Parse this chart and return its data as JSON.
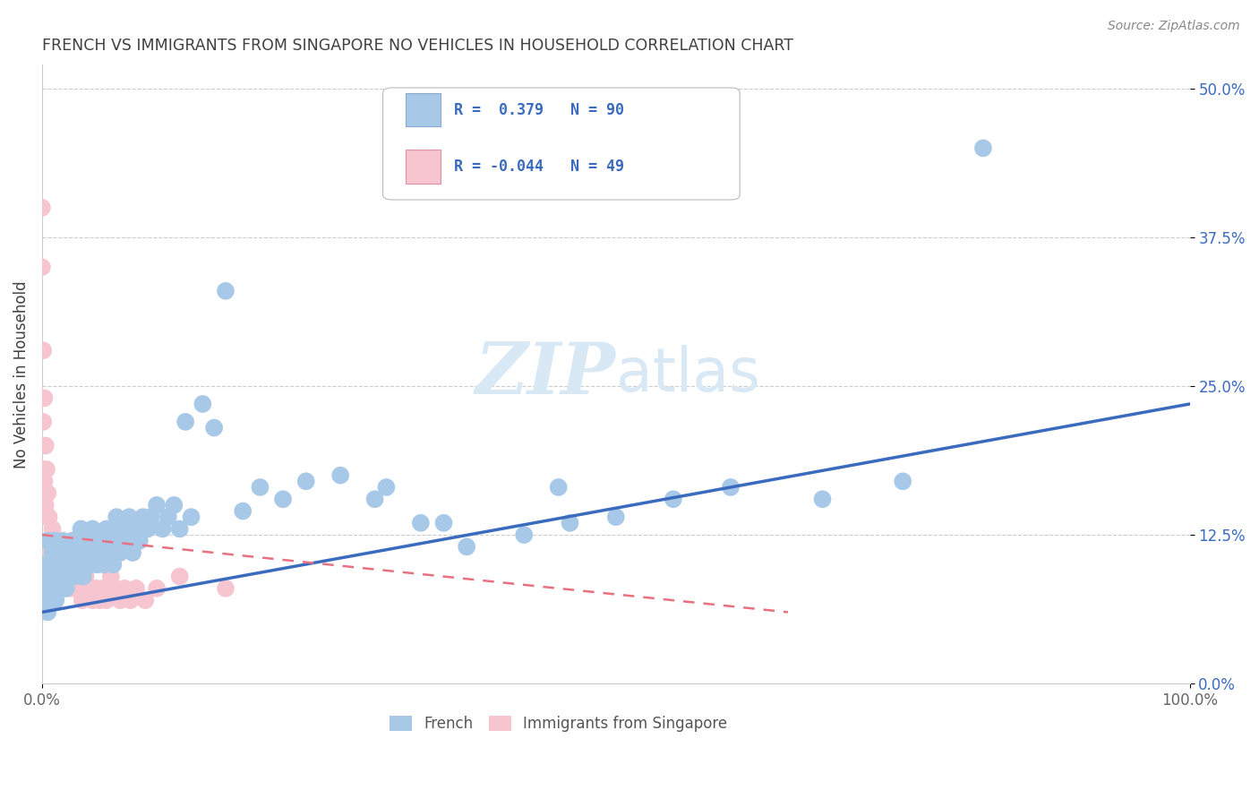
{
  "title": "FRENCH VS IMMIGRANTS FROM SINGAPORE NO VEHICLES IN HOUSEHOLD CORRELATION CHART",
  "source_text": "Source: ZipAtlas.com",
  "ylabel": "No Vehicles in Household",
  "xlim": [
    0.0,
    1.0
  ],
  "ylim": [
    0.0,
    0.52
  ],
  "yticks": [
    0.0,
    0.125,
    0.25,
    0.375,
    0.5
  ],
  "ytick_labels": [
    "0.0%",
    "12.5%",
    "25.0%",
    "37.5%",
    "50.0%"
  ],
  "xticks": [
    0.0,
    1.0
  ],
  "xtick_labels": [
    "0.0%",
    "100.0%"
  ],
  "french_R": 0.379,
  "french_N": 90,
  "singapore_R": -0.044,
  "singapore_N": 49,
  "french_color": "#a8c8e8",
  "singapore_color": "#f7c5cf",
  "french_line_color": "#3a6bbf",
  "singapore_line_color": "#e87080",
  "legend_text_color": "#3a6bbf",
  "title_color": "#404040",
  "watermark_color": "#d8e8f5",
  "grid_color": "#cccccc",
  "background_color": "#ffffff",
  "marker_size": 200,
  "french_x": [
    0.002,
    0.003,
    0.003,
    0.004,
    0.005,
    0.005,
    0.005,
    0.006,
    0.006,
    0.007,
    0.007,
    0.008,
    0.009,
    0.009,
    0.01,
    0.01,
    0.011,
    0.012,
    0.013,
    0.013,
    0.014,
    0.015,
    0.016,
    0.017,
    0.018,
    0.019,
    0.02,
    0.021,
    0.022,
    0.023,
    0.025,
    0.026,
    0.028,
    0.03,
    0.032,
    0.034,
    0.036,
    0.038,
    0.04,
    0.042,
    0.044,
    0.046,
    0.048,
    0.05,
    0.052,
    0.054,
    0.056,
    0.058,
    0.06,
    0.062,
    0.065,
    0.068,
    0.07,
    0.073,
    0.076,
    0.079,
    0.082,
    0.085,
    0.088,
    0.092,
    0.095,
    0.1,
    0.105,
    0.11,
    0.115,
    0.12,
    0.125,
    0.13,
    0.14,
    0.15,
    0.16,
    0.175,
    0.19,
    0.21,
    0.23,
    0.26,
    0.29,
    0.33,
    0.37,
    0.42,
    0.46,
    0.5,
    0.55,
    0.6,
    0.68,
    0.75,
    0.3,
    0.35,
    0.82,
    0.45
  ],
  "french_y": [
    0.09,
    0.07,
    0.1,
    0.08,
    0.06,
    0.12,
    0.08,
    0.09,
    0.07,
    0.1,
    0.08,
    0.09,
    0.11,
    0.07,
    0.08,
    0.1,
    0.12,
    0.07,
    0.09,
    0.11,
    0.08,
    0.1,
    0.11,
    0.08,
    0.12,
    0.09,
    0.1,
    0.08,
    0.11,
    0.09,
    0.1,
    0.12,
    0.09,
    0.11,
    0.1,
    0.13,
    0.09,
    0.11,
    0.12,
    0.1,
    0.13,
    0.11,
    0.1,
    0.12,
    0.11,
    0.1,
    0.13,
    0.11,
    0.12,
    0.1,
    0.14,
    0.11,
    0.13,
    0.12,
    0.14,
    0.11,
    0.13,
    0.12,
    0.14,
    0.13,
    0.14,
    0.15,
    0.13,
    0.14,
    0.15,
    0.13,
    0.22,
    0.14,
    0.235,
    0.215,
    0.33,
    0.145,
    0.165,
    0.155,
    0.17,
    0.175,
    0.155,
    0.135,
    0.115,
    0.125,
    0.135,
    0.14,
    0.155,
    0.165,
    0.155,
    0.17,
    0.165,
    0.135,
    0.45,
    0.165
  ],
  "singapore_x": [
    0.0,
    0.0,
    0.001,
    0.001,
    0.001,
    0.002,
    0.002,
    0.003,
    0.003,
    0.004,
    0.004,
    0.005,
    0.005,
    0.006,
    0.007,
    0.008,
    0.009,
    0.01,
    0.011,
    0.012,
    0.013,
    0.015,
    0.017,
    0.019,
    0.021,
    0.023,
    0.025,
    0.027,
    0.029,
    0.031,
    0.033,
    0.035,
    0.038,
    0.041,
    0.044,
    0.047,
    0.05,
    0.053,
    0.056,
    0.06,
    0.064,
    0.068,
    0.072,
    0.077,
    0.082,
    0.09,
    0.1,
    0.12,
    0.16
  ],
  "singapore_y": [
    0.4,
    0.35,
    0.28,
    0.22,
    0.18,
    0.24,
    0.17,
    0.2,
    0.15,
    0.18,
    0.14,
    0.16,
    0.12,
    0.14,
    0.12,
    0.11,
    0.13,
    0.1,
    0.11,
    0.1,
    0.09,
    0.1,
    0.09,
    0.08,
    0.1,
    0.09,
    0.08,
    0.09,
    0.08,
    0.09,
    0.08,
    0.07,
    0.09,
    0.08,
    0.07,
    0.08,
    0.07,
    0.08,
    0.07,
    0.09,
    0.08,
    0.07,
    0.08,
    0.07,
    0.08,
    0.07,
    0.08,
    0.09,
    0.08
  ],
  "french_line_x0": 0.0,
  "french_line_y0": 0.06,
  "french_line_x1": 1.0,
  "french_line_y1": 0.235,
  "sg_line_x0": 0.0,
  "sg_line_y0": 0.125,
  "sg_line_x1": 0.65,
  "sg_line_y1": 0.06
}
